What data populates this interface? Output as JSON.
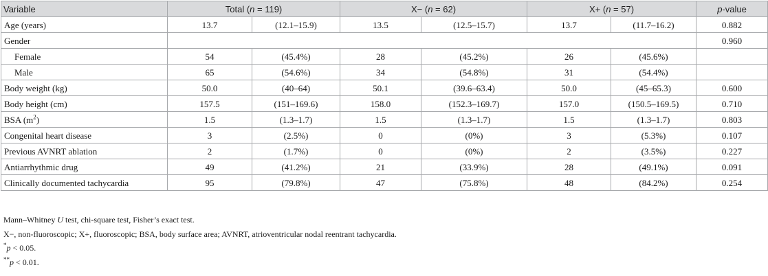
{
  "header": {
    "variable": "Variable",
    "total_prefix": "Total (",
    "total_n": "n",
    "total_suffix": " = 119)",
    "xminus_prefix": "X− (",
    "xminus_n": "n",
    "xminus_suffix": " = 62)",
    "xplus_prefix": "X+ (",
    "xplus_n": "n",
    "xplus_suffix": " = 57)",
    "pvalue_p": "p",
    "pvalue_suffix": "-value"
  },
  "rows": [
    {
      "variable": "Age (years)",
      "total_v": "13.7",
      "total_r": "(12.1–15.9)",
      "xm_v": "13.5",
      "xm_r": "(12.5–15.7)",
      "xp_v": "13.7",
      "xp_r": "(11.7–16.2)",
      "p": "0.882"
    },
    {
      "variable": "Gender",
      "p": "0.960"
    },
    {
      "variable": "Female",
      "total_v": "54",
      "total_r": "(45.4%)",
      "xm_v": "28",
      "xm_r": "(45.2%)",
      "xp_v": "26",
      "xp_r": "(45.6%)",
      "p": ""
    },
    {
      "variable": "Male",
      "total_v": "65",
      "total_r": "(54.6%)",
      "xm_v": "34",
      "xm_r": "(54.8%)",
      "xp_v": "31",
      "xp_r": "(54.4%)",
      "p": ""
    },
    {
      "variable": "Body weight (kg)",
      "total_v": "50.0",
      "total_r": "(40–64)",
      "xm_v": "50.1",
      "xm_r": "(39.6–63.4)",
      "xp_v": "50.0",
      "xp_r": "(45–65.3)",
      "p": "0.600"
    },
    {
      "variable": "Body height (cm)",
      "total_v": "157.5",
      "total_r": "(151–169.6)",
      "xm_v": "158.0",
      "xm_r": "(152.3–169.7)",
      "xp_v": "157.0",
      "xp_r": "(150.5–169.5)",
      "p": "0.710"
    },
    {
      "variable_prefix": "BSA (m",
      "variable_sup": "2",
      "variable_suffix": ")",
      "total_v": "1.5",
      "total_r": "(1.3–1.7)",
      "xm_v": "1.5",
      "xm_r": "(1.3–1.7)",
      "xp_v": "1.5",
      "xp_r": "(1.3–1.7)",
      "p": "0.803"
    },
    {
      "variable": "Congenital heart disease",
      "total_v": "3",
      "total_r": "(2.5%)",
      "xm_v": "0",
      "xm_r": "(0%)",
      "xp_v": "3",
      "xp_r": "(5.3%)",
      "p": "0.107"
    },
    {
      "variable": "Previous AVNRT ablation",
      "total_v": "2",
      "total_r": "(1.7%)",
      "xm_v": "0",
      "xm_r": "(0%)",
      "xp_v": "2",
      "xp_r": "(3.5%)",
      "p": "0.227"
    },
    {
      "variable": "Antiarrhythmic drug",
      "total_v": "49",
      "total_r": "(41.2%)",
      "xm_v": "21",
      "xm_r": "(33.9%)",
      "xp_v": "28",
      "xp_r": "(49.1%)",
      "p": "0.091"
    },
    {
      "variable": "Clinically documented tachycardia",
      "total_v": "95",
      "total_r": "(79.8%)",
      "xm_v": "47",
      "xm_r": "(75.8%)",
      "xp_v": "48",
      "xp_r": "(84.2%)",
      "p": "0.254"
    }
  ],
  "notes": {
    "line1_a": "Mann–Whitney ",
    "line1_u": "U",
    "line1_b": " test, chi-square test, Fisher’s exact test.",
    "line2": "X−, non-fluoroscopic; X+, fluoroscopic; BSA, body surface area; AVNRT, atrioventricular nodal reentrant tachycardia.",
    "line3_mark": "*",
    "line3_p": "p",
    "line3_rest": " < 0.05.",
    "line4_mark": "**",
    "line4_p": "p",
    "line4_rest": " < 0.01."
  }
}
